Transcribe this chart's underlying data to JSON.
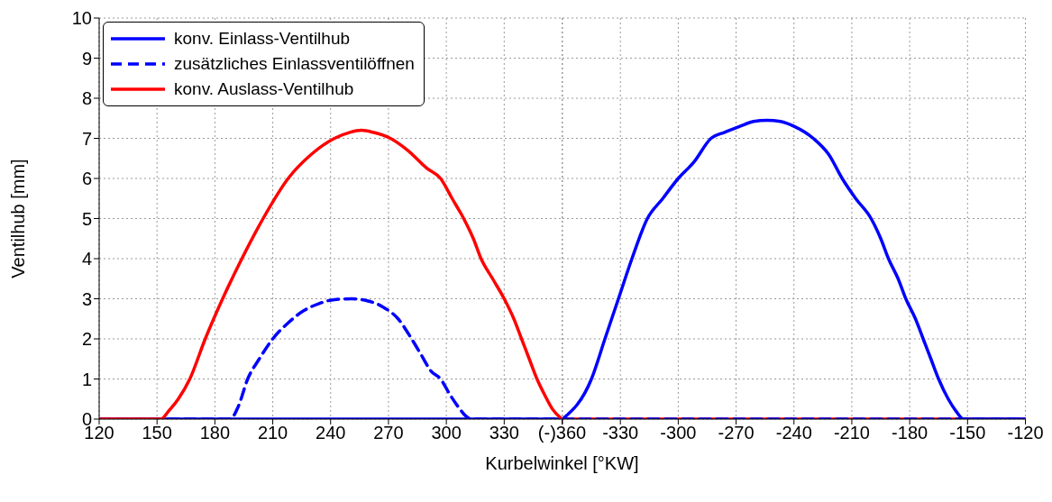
{
  "chart_data": [
    {
      "type": "line",
      "xlabel": "Kurbelwinkel [°KW]",
      "ylabel": "Ventilhub [mm]",
      "xlim": [
        120,
        360
      ],
      "xticks": [
        120,
        150,
        180,
        210,
        240,
        270,
        300,
        330,
        {
          "value": 360,
          "label": "(-)360"
        }
      ],
      "ylim": [
        0,
        10
      ],
      "yticks": [
        0,
        1,
        2,
        3,
        4,
        5,
        6,
        7,
        8,
        9,
        10
      ],
      "grid": true,
      "legend": "top left",
      "marker": "none",
      "series": [
        {
          "name": "konv. Einlass-Ventilhub",
          "color": "#0000ff",
          "line_style": "solid",
          "x": [
            120,
            360
          ],
          "values": [
            0,
            0
          ]
        },
        {
          "name": "zusätzliches Einlassventilöffnen",
          "color": "#0000ff",
          "line_style": "dashed",
          "x": [
            120,
            188,
            192,
            197,
            203,
            210,
            218,
            226,
            234,
            242,
            251,
            259,
            267,
            275,
            282,
            287,
            292,
            297,
            302,
            307,
            310,
            313,
            360
          ],
          "values": [
            0,
            0,
            0.3,
            1,
            1.5,
            2,
            2.4,
            2.7,
            2.88,
            2.98,
            3,
            2.95,
            2.8,
            2.5,
            2,
            1.6,
            1.2,
            1,
            0.6,
            0.25,
            0.08,
            0,
            0
          ]
        },
        {
          "name": "konv. Auslass-Ventilhub",
          "color": "#ff0000",
          "line_style": "solid",
          "x": [
            120,
            152,
            156,
            161,
            167,
            175,
            184,
            194,
            205,
            218,
            230,
            242,
            250,
            256,
            262,
            271,
            280,
            290,
            297,
            303,
            309,
            314,
            318,
            324,
            330,
            335,
            339,
            343,
            347,
            351,
            355,
            360
          ],
          "values": [
            0,
            0,
            0.2,
            0.5,
            1,
            2,
            3,
            4,
            5,
            6,
            6.6,
            7,
            7.15,
            7.2,
            7.15,
            7,
            6.7,
            6.25,
            6,
            5.5,
            5,
            4.5,
            4,
            3.5,
            3,
            2.5,
            2,
            1.5,
            1,
            0.6,
            0.25,
            0
          ]
        }
      ]
    },
    {
      "type": "line",
      "xlim": [
        -360,
        -120
      ],
      "xticks": [
        {
          "value": -360,
          "label": null
        },
        -330,
        -300,
        -270,
        -240,
        -210,
        -180,
        -150,
        -120
      ],
      "ylim": [
        0,
        10
      ],
      "yticks": [
        0,
        1,
        2,
        3,
        4,
        5,
        6,
        7,
        8,
        9,
        10
      ],
      "tick_labels": "x",
      "grid": true,
      "marker": "none",
      "series": [
        {
          "color": "#ff0000",
          "line_style": "solid",
          "x": [
            -360,
            -120
          ],
          "values": [
            0,
            0
          ]
        },
        {
          "color": "#0000ff",
          "line_style": "solid",
          "x": [
            -360,
            -345,
            -338,
            -331,
            -324,
            -316,
            -308,
            -300,
            -292,
            -283,
            -276,
            -268,
            -261,
            -254,
            -247,
            -240,
            -230,
            -222,
            -215,
            -208,
            -200,
            -195,
            -191,
            -186,
            -182,
            -177,
            -173,
            -169,
            -165,
            -160,
            -156,
            -152,
            -120
          ],
          "values": [
            0,
            1,
            2,
            3,
            4,
            5,
            5.5,
            6,
            6.4,
            7,
            7.15,
            7.3,
            7.42,
            7.45,
            7.42,
            7.3,
            7,
            6.6,
            6,
            5.5,
            5,
            4.5,
            4,
            3.5,
            3,
            2.5,
            2,
            1.5,
            1,
            0.5,
            0.2,
            0,
            0
          ]
        },
        {
          "color": "#0000ff",
          "line_style": "dashed",
          "x": [
            -360,
            -120
          ],
          "values": [
            0,
            0
          ]
        }
      ]
    }
  ]
}
